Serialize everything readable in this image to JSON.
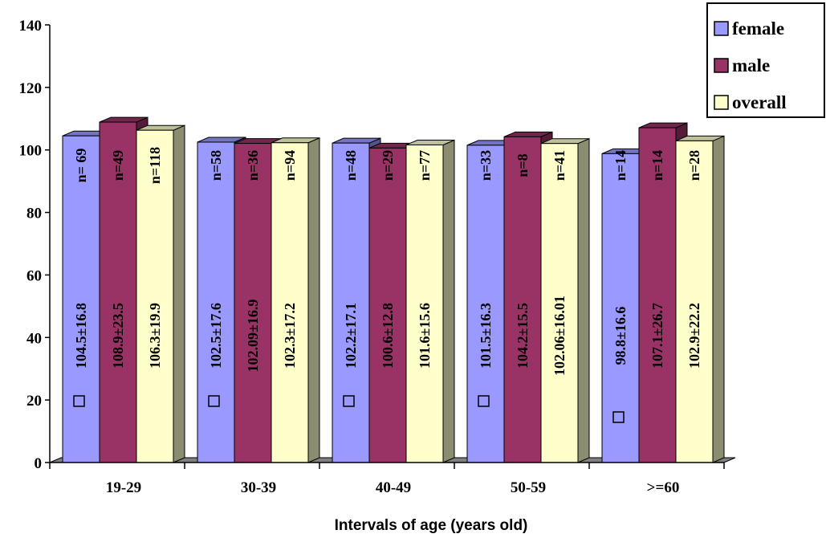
{
  "chart_data": {
    "type": "bar",
    "xlabel": "Intervals of age (years old)",
    "ylabel": "",
    "ylim": [
      0,
      140
    ],
    "yticks": [
      0,
      20,
      40,
      60,
      80,
      100,
      120,
      140
    ],
    "categories": [
      "19-29",
      "30-39",
      "40-49",
      "50-59",
      ">=60"
    ],
    "legend_position": "top-right",
    "series": [
      {
        "name": "female",
        "color": "#9999ff",
        "values": [
          104.5,
          102.5,
          102.2,
          101.5,
          98.8
        ],
        "value_labels": [
          "104.5±16.8",
          "102.5±17.6",
          "102.2±17.1",
          "101.5±16.3",
          "98.8±16.6"
        ],
        "n_labels": [
          "n= 69",
          "n=58",
          "n=48",
          "n=33",
          "n=14"
        ]
      },
      {
        "name": "male",
        "color": "#993366",
        "values": [
          108.9,
          102.09,
          100.6,
          104.2,
          107.1
        ],
        "value_labels": [
          "108.9±23.5",
          "102.09±16.9",
          "100.6±12.8",
          "104.2±15.5",
          "107.1±26.7"
        ],
        "n_labels": [
          "n=49",
          "n=36",
          "n=29",
          "n=8",
          "n=14"
        ]
      },
      {
        "name": "overall",
        "color": "#ffffcc",
        "values": [
          106.3,
          102.3,
          101.6,
          102.06,
          102.9
        ],
        "value_labels": [
          "106.3±19.9",
          "102.3±17.2",
          "101.6±15.6",
          "102.06±16.01",
          "102.9±22.2"
        ],
        "n_labels": [
          "n=118",
          "n=94",
          "n=77",
          "n=41",
          "n=28"
        ]
      }
    ]
  }
}
